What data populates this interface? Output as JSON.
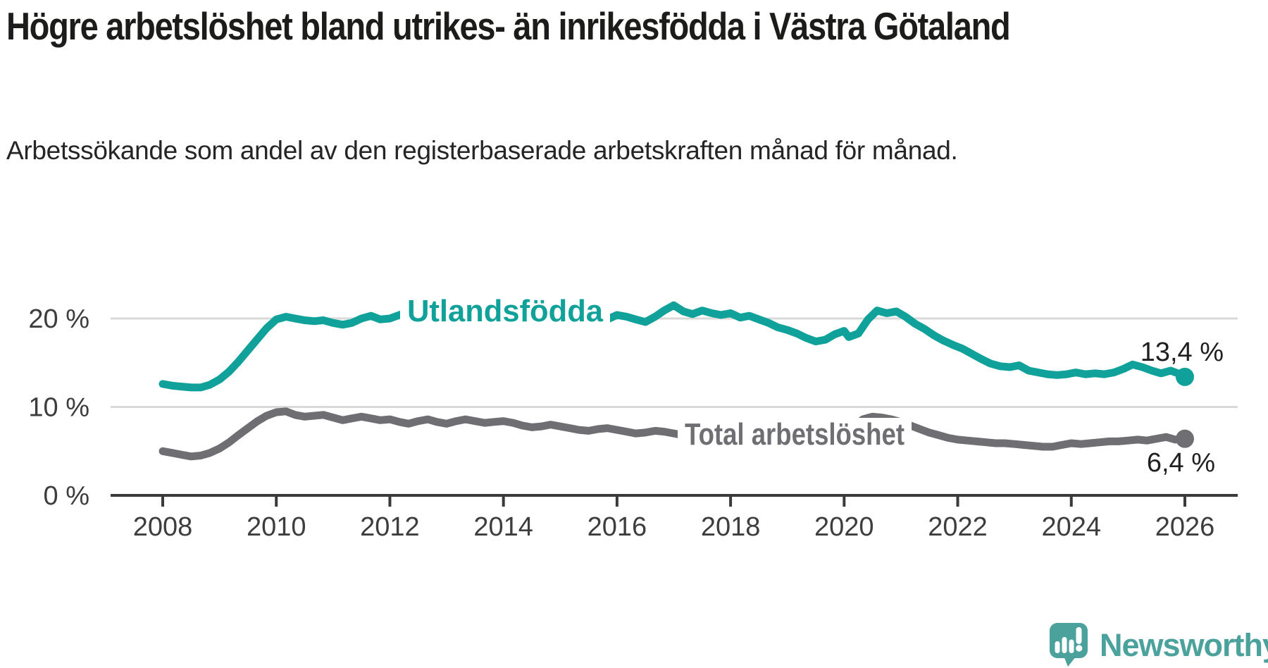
{
  "footer": {
    "brand": "Newsworthy"
  },
  "colors": {
    "grid": "#d9d9d9",
    "axis": "#3a3a3a",
    "value_label": "#1f1f1f",
    "logo_teal": "#4ba19c"
  },
  "chart_data": {
    "type": "line",
    "title": "Högre arbetslöshet bland utrikes- än inrikesfödda i Västra Götaland",
    "subtitle": "Arbetssökande som andel av den registerbaserade arbetskraften månad för månad.",
    "unit": "%",
    "legend_position": "inline-labels",
    "x_axis": {
      "ticks": [
        2008,
        2010,
        2012,
        2014,
        2016,
        2018,
        2020,
        2022,
        2024,
        2026
      ],
      "range": [
        2008,
        2026
      ]
    },
    "y_axis": {
      "labels": [
        "0 %",
        "10 %",
        "20 %"
      ],
      "tick_values": [
        0,
        10,
        20
      ],
      "range": [
        0,
        22.6
      ],
      "grid": true
    },
    "series": [
      {
        "name": "Utlandsfödda",
        "color": "#10a29a",
        "end_label": "13,4 %",
        "end_value": 13.4,
        "points": [
          [
            2008.0,
            12.6
          ],
          [
            2008.17,
            12.4
          ],
          [
            2008.33,
            12.3
          ],
          [
            2008.5,
            12.2
          ],
          [
            2008.67,
            12.2
          ],
          [
            2008.83,
            12.5
          ],
          [
            2009.0,
            13.1
          ],
          [
            2009.17,
            14.0
          ],
          [
            2009.33,
            15.1
          ],
          [
            2009.5,
            16.4
          ],
          [
            2009.67,
            17.7
          ],
          [
            2009.83,
            18.9
          ],
          [
            2010.0,
            19.9
          ],
          [
            2010.17,
            20.2
          ],
          [
            2010.33,
            20.0
          ],
          [
            2010.5,
            19.8
          ],
          [
            2010.67,
            19.7
          ],
          [
            2010.83,
            19.8
          ],
          [
            2011.0,
            19.5
          ],
          [
            2011.17,
            19.3
          ],
          [
            2011.33,
            19.5
          ],
          [
            2011.5,
            20.0
          ],
          [
            2011.67,
            20.3
          ],
          [
            2011.83,
            19.9
          ],
          [
            2012.0,
            20.0
          ],
          [
            2012.17,
            20.4
          ],
          [
            2012.33,
            20.8
          ],
          [
            2012.5,
            20.3
          ],
          [
            2012.67,
            20.1
          ],
          [
            2012.83,
            19.9
          ],
          [
            2013.0,
            19.8
          ],
          [
            2013.17,
            20.1
          ],
          [
            2013.33,
            20.4
          ],
          [
            2013.5,
            20.0
          ],
          [
            2013.67,
            19.9
          ],
          [
            2013.83,
            20.1
          ],
          [
            2014.0,
            20.2
          ],
          [
            2014.17,
            20.3
          ],
          [
            2014.33,
            19.9
          ],
          [
            2014.5,
            19.7
          ],
          [
            2014.67,
            19.8
          ],
          [
            2014.83,
            19.9
          ],
          [
            2015.0,
            20.0
          ],
          [
            2015.17,
            19.8
          ],
          [
            2015.33,
            19.6
          ],
          [
            2015.5,
            19.4
          ],
          [
            2015.67,
            19.6
          ],
          [
            2015.83,
            19.9
          ],
          [
            2016.0,
            20.4
          ],
          [
            2016.17,
            20.2
          ],
          [
            2016.33,
            19.9
          ],
          [
            2016.5,
            19.6
          ],
          [
            2016.67,
            20.2
          ],
          [
            2016.83,
            20.9
          ],
          [
            2017.0,
            21.5
          ],
          [
            2017.17,
            20.8
          ],
          [
            2017.33,
            20.5
          ],
          [
            2017.5,
            20.9
          ],
          [
            2017.67,
            20.6
          ],
          [
            2017.83,
            20.4
          ],
          [
            2018.0,
            20.6
          ],
          [
            2018.17,
            20.1
          ],
          [
            2018.33,
            20.3
          ],
          [
            2018.5,
            19.9
          ],
          [
            2018.67,
            19.5
          ],
          [
            2018.83,
            19.0
          ],
          [
            2019.0,
            18.7
          ],
          [
            2019.17,
            18.3
          ],
          [
            2019.33,
            17.8
          ],
          [
            2019.5,
            17.4
          ],
          [
            2019.67,
            17.6
          ],
          [
            2019.83,
            18.2
          ],
          [
            2020.0,
            18.6
          ],
          [
            2020.08,
            17.9
          ],
          [
            2020.25,
            18.3
          ],
          [
            2020.42,
            19.9
          ],
          [
            2020.58,
            20.9
          ],
          [
            2020.75,
            20.6
          ],
          [
            2020.92,
            20.8
          ],
          [
            2021.08,
            20.2
          ],
          [
            2021.25,
            19.4
          ],
          [
            2021.42,
            18.8
          ],
          [
            2021.58,
            18.1
          ],
          [
            2021.75,
            17.5
          ],
          [
            2021.92,
            17.0
          ],
          [
            2022.08,
            16.6
          ],
          [
            2022.25,
            16.0
          ],
          [
            2022.42,
            15.4
          ],
          [
            2022.58,
            14.9
          ],
          [
            2022.75,
            14.6
          ],
          [
            2022.92,
            14.5
          ],
          [
            2023.08,
            14.7
          ],
          [
            2023.25,
            14.1
          ],
          [
            2023.42,
            13.9
          ],
          [
            2023.58,
            13.7
          ],
          [
            2023.75,
            13.6
          ],
          [
            2023.92,
            13.7
          ],
          [
            2024.08,
            13.9
          ],
          [
            2024.25,
            13.7
          ],
          [
            2024.42,
            13.8
          ],
          [
            2024.58,
            13.7
          ],
          [
            2024.75,
            13.9
          ],
          [
            2024.92,
            14.3
          ],
          [
            2025.08,
            14.8
          ],
          [
            2025.25,
            14.5
          ],
          [
            2025.42,
            14.1
          ],
          [
            2025.58,
            13.8
          ],
          [
            2025.75,
            14.1
          ],
          [
            2025.92,
            13.7
          ],
          [
            2026.0,
            13.4
          ]
        ]
      },
      {
        "name": "Total arbetslöshet",
        "color": "#6f6f73",
        "end_label": "6,4 %",
        "end_value": 6.4,
        "points": [
          [
            2008.0,
            5.0
          ],
          [
            2008.17,
            4.8
          ],
          [
            2008.33,
            4.6
          ],
          [
            2008.5,
            4.4
          ],
          [
            2008.67,
            4.5
          ],
          [
            2008.83,
            4.8
          ],
          [
            2009.0,
            5.3
          ],
          [
            2009.17,
            6.0
          ],
          [
            2009.33,
            6.8
          ],
          [
            2009.5,
            7.6
          ],
          [
            2009.67,
            8.4
          ],
          [
            2009.83,
            9.0
          ],
          [
            2010.0,
            9.4
          ],
          [
            2010.17,
            9.5
          ],
          [
            2010.33,
            9.1
          ],
          [
            2010.5,
            8.9
          ],
          [
            2010.67,
            9.0
          ],
          [
            2010.83,
            9.1
          ],
          [
            2011.0,
            8.8
          ],
          [
            2011.17,
            8.5
          ],
          [
            2011.33,
            8.7
          ],
          [
            2011.5,
            8.9
          ],
          [
            2011.67,
            8.7
          ],
          [
            2011.83,
            8.5
          ],
          [
            2012.0,
            8.6
          ],
          [
            2012.17,
            8.3
          ],
          [
            2012.33,
            8.1
          ],
          [
            2012.5,
            8.4
          ],
          [
            2012.67,
            8.6
          ],
          [
            2012.83,
            8.3
          ],
          [
            2013.0,
            8.1
          ],
          [
            2013.17,
            8.4
          ],
          [
            2013.33,
            8.6
          ],
          [
            2013.5,
            8.4
          ],
          [
            2013.67,
            8.2
          ],
          [
            2013.83,
            8.3
          ],
          [
            2014.0,
            8.4
          ],
          [
            2014.17,
            8.2
          ],
          [
            2014.33,
            7.9
          ],
          [
            2014.5,
            7.7
          ],
          [
            2014.67,
            7.8
          ],
          [
            2014.83,
            8.0
          ],
          [
            2015.0,
            7.8
          ],
          [
            2015.17,
            7.6
          ],
          [
            2015.33,
            7.4
          ],
          [
            2015.5,
            7.3
          ],
          [
            2015.67,
            7.5
          ],
          [
            2015.83,
            7.6
          ],
          [
            2016.0,
            7.4
          ],
          [
            2016.17,
            7.2
          ],
          [
            2016.33,
            7.0
          ],
          [
            2016.5,
            7.1
          ],
          [
            2016.67,
            7.3
          ],
          [
            2016.83,
            7.2
          ],
          [
            2017.0,
            7.0
          ],
          [
            2017.17,
            6.8
          ],
          [
            2017.33,
            6.9
          ],
          [
            2017.5,
            7.0
          ],
          [
            2017.67,
            6.9
          ],
          [
            2017.83,
            6.8
          ],
          [
            2018.0,
            6.8
          ],
          [
            2018.25,
            6.7
          ],
          [
            2018.5,
            6.6
          ],
          [
            2018.75,
            6.6
          ],
          [
            2019.0,
            6.7
          ],
          [
            2019.25,
            6.7
          ],
          [
            2019.5,
            6.8
          ],
          [
            2019.75,
            7.0
          ],
          [
            2020.0,
            7.3
          ],
          [
            2020.17,
            7.8
          ],
          [
            2020.33,
            8.6
          ],
          [
            2020.5,
            8.9
          ],
          [
            2020.67,
            8.8
          ],
          [
            2020.83,
            8.6
          ],
          [
            2021.0,
            8.3
          ],
          [
            2021.17,
            7.9
          ],
          [
            2021.33,
            7.5
          ],
          [
            2021.5,
            7.1
          ],
          [
            2021.67,
            6.8
          ],
          [
            2021.83,
            6.5
          ],
          [
            2022.0,
            6.3
          ],
          [
            2022.17,
            6.2
          ],
          [
            2022.33,
            6.1
          ],
          [
            2022.5,
            6.0
          ],
          [
            2022.67,
            5.9
          ],
          [
            2022.83,
            5.9
          ],
          [
            2023.0,
            5.8
          ],
          [
            2023.17,
            5.7
          ],
          [
            2023.33,
            5.6
          ],
          [
            2023.5,
            5.5
          ],
          [
            2023.67,
            5.5
          ],
          [
            2023.83,
            5.7
          ],
          [
            2024.0,
            5.9
          ],
          [
            2024.17,
            5.8
          ],
          [
            2024.33,
            5.9
          ],
          [
            2024.5,
            6.0
          ],
          [
            2024.67,
            6.1
          ],
          [
            2024.83,
            6.1
          ],
          [
            2025.0,
            6.2
          ],
          [
            2025.17,
            6.3
          ],
          [
            2025.33,
            6.2
          ],
          [
            2025.5,
            6.4
          ],
          [
            2025.67,
            6.6
          ],
          [
            2025.83,
            6.3
          ],
          [
            2026.0,
            6.4
          ]
        ]
      }
    ]
  }
}
